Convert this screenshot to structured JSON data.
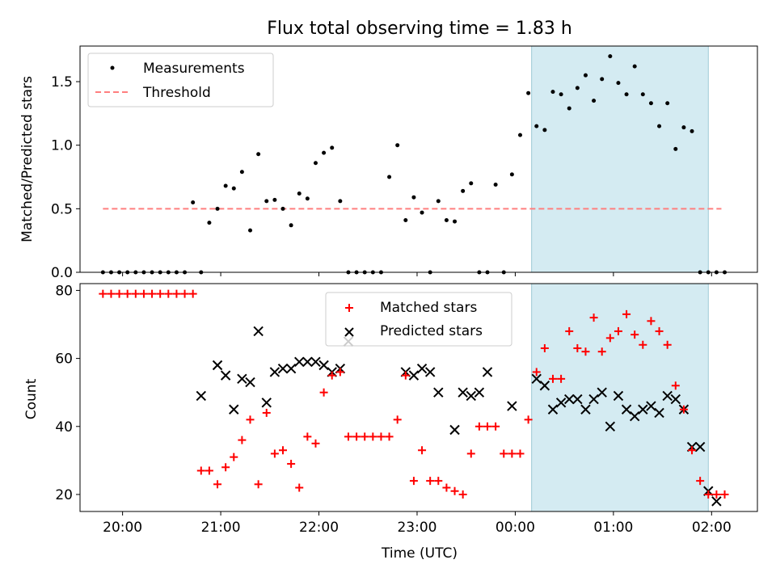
{
  "figure": {
    "title": "Flux total observing time = 1.83 h"
  },
  "chart_data": [
    {
      "type": "scatter",
      "ylabel": "Matched/Predicted stars",
      "ylim": [
        0,
        1.78
      ],
      "yticks": [
        0.0,
        0.5,
        1.0,
        1.5
      ],
      "ytick_labels": [
        "0.0",
        "0.5",
        "1.0",
        "1.5"
      ],
      "xlim": [
        "19:34",
        "02:28"
      ],
      "shaded_span": [
        "00:10",
        "01:58"
      ],
      "threshold": {
        "value": 0.5,
        "from": "19:48",
        "to": "02:06",
        "color": "#ff7f7f"
      },
      "legend": {
        "position": "top-left",
        "entries": [
          "Measurements",
          "Threshold"
        ]
      },
      "series": [
        {
          "name": "Measurements",
          "color": "#000000",
          "x": [
            "19:48",
            "19:53",
            "19:58",
            "20:03",
            "20:08",
            "20:13",
            "20:18",
            "20:23",
            "20:28",
            "20:33",
            "20:38",
            "20:43",
            "20:48",
            "20:53",
            "20:58",
            "21:03",
            "21:08",
            "21:13",
            "21:18",
            "21:23",
            "21:28",
            "21:33",
            "21:38",
            "21:43",
            "21:48",
            "21:53",
            "21:58",
            "22:03",
            "22:08",
            "22:13",
            "22:18",
            "22:23",
            "22:28",
            "22:33",
            "22:38",
            "22:43",
            "22:48",
            "22:53",
            "22:58",
            "23:03",
            "23:08",
            "23:13",
            "23:18",
            "23:23",
            "23:28",
            "23:33",
            "23:38",
            "23:43",
            "23:48",
            "23:53",
            "23:58",
            "00:03",
            "00:08",
            "00:13",
            "00:18",
            "00:23",
            "00:28",
            "00:33",
            "00:38",
            "00:43",
            "00:48",
            "00:53",
            "00:58",
            "01:03",
            "01:08",
            "01:13",
            "01:18",
            "01:23",
            "01:28",
            "01:33",
            "01:38",
            "01:43",
            "01:48",
            "01:53",
            "01:58",
            "02:03",
            "02:08"
          ],
          "y": [
            0,
            0,
            0,
            0,
            0,
            0,
            0,
            0,
            0,
            0,
            0,
            0.55,
            0,
            0.39,
            0.5,
            0.68,
            0.66,
            0.79,
            0.33,
            0.93,
            0.56,
            0.57,
            0.5,
            0.37,
            0.62,
            0.58,
            0.86,
            0.94,
            0.98,
            0.56,
            0,
            0,
            0,
            0,
            0,
            0.75,
            1.0,
            0.41,
            0.59,
            0.47,
            0,
            0.56,
            0.41,
            0.4,
            0.64,
            0.7,
            0,
            0,
            0.69,
            0,
            0.77,
            1.08,
            1.41,
            1.15,
            1.12,
            1.42,
            1.4,
            1.29,
            1.45,
            1.55,
            1.35,
            1.52,
            1.7,
            1.49,
            1.4,
            1.62,
            1.4,
            1.33,
            1.15,
            1.33,
            0.97,
            1.14,
            1.11,
            0,
            0,
            0,
            0
          ]
        }
      ]
    },
    {
      "type": "scatter",
      "xlabel": "Time (UTC)",
      "ylabel": "Count",
      "ylim": [
        15,
        82
      ],
      "yticks": [
        20,
        40,
        60,
        80
      ],
      "ytick_labels": [
        "20",
        "40",
        "60",
        "80"
      ],
      "xlim": [
        "19:34",
        "02:28"
      ],
      "xticks": [
        "20:00",
        "21:00",
        "22:00",
        "23:00",
        "00:00",
        "01:00",
        "02:00"
      ],
      "shaded_span": [
        "00:10",
        "01:58"
      ],
      "legend": {
        "position": "top-center",
        "entries": [
          "Matched stars",
          "Predicted stars"
        ]
      },
      "series": [
        {
          "name": "Matched stars",
          "marker": "plus",
          "color": "#ff0000",
          "x": [
            "19:48",
            "19:53",
            "19:58",
            "20:03",
            "20:08",
            "20:13",
            "20:18",
            "20:23",
            "20:28",
            "20:33",
            "20:38",
            "20:43",
            "20:48",
            "20:53",
            "20:58",
            "21:03",
            "21:08",
            "21:13",
            "21:18",
            "21:23",
            "21:28",
            "21:33",
            "21:38",
            "21:43",
            "21:48",
            "21:53",
            "21:58",
            "22:03",
            "22:08",
            "22:13",
            "22:18",
            "22:23",
            "22:28",
            "22:33",
            "22:38",
            "22:43",
            "22:48",
            "22:53",
            "22:58",
            "23:03",
            "23:08",
            "23:13",
            "23:18",
            "23:23",
            "23:28",
            "23:33",
            "23:38",
            "23:43",
            "23:48",
            "23:53",
            "23:58",
            "00:03",
            "00:08",
            "00:13",
            "00:18",
            "00:23",
            "00:28",
            "00:33",
            "00:38",
            "00:43",
            "00:48",
            "00:53",
            "00:58",
            "01:03",
            "01:08",
            "01:13",
            "01:18",
            "01:23",
            "01:28",
            "01:33",
            "01:38",
            "01:43",
            "01:48",
            "01:53",
            "01:58",
            "02:03",
            "02:08"
          ],
          "y": [
            79,
            79,
            79,
            79,
            79,
            79,
            79,
            79,
            79,
            79,
            79,
            79,
            27,
            27,
            23,
            28,
            31,
            36,
            42,
            23,
            44,
            32,
            33,
            29,
            22,
            37,
            35,
            50,
            55,
            56,
            37,
            37,
            37,
            37,
            37,
            37,
            42,
            55,
            24,
            33,
            24,
            24,
            22,
            21,
            20,
            32,
            40,
            40,
            40,
            32,
            32,
            32,
            42,
            56,
            63,
            54,
            54,
            68,
            63,
            62,
            72,
            62,
            66,
            68,
            73,
            67,
            64,
            71,
            68,
            64,
            52,
            45,
            33,
            24,
            20,
            20,
            20
          ]
        },
        {
          "name": "Predicted stars",
          "marker": "x",
          "color": "#000000",
          "x": [
            "20:48",
            "20:58",
            "21:03",
            "21:08",
            "21:13",
            "21:18",
            "21:23",
            "21:28",
            "21:33",
            "21:38",
            "21:43",
            "21:48",
            "21:53",
            "21:58",
            "22:03",
            "22:08",
            "22:13",
            "22:18",
            "22:53",
            "22:58",
            "23:03",
            "23:08",
            "23:13",
            "23:23",
            "23:28",
            "23:33",
            "23:38",
            "23:43",
            "23:58",
            "00:13",
            "00:18",
            "00:23",
            "00:28",
            "00:33",
            "00:38",
            "00:43",
            "00:48",
            "00:53",
            "00:58",
            "01:03",
            "01:08",
            "01:13",
            "01:18",
            "01:23",
            "01:28",
            "01:33",
            "01:38",
            "01:43",
            "01:48",
            "01:53",
            "01:58",
            "02:03"
          ],
          "y": [
            49,
            58,
            55,
            45,
            54,
            53,
            68,
            47,
            56,
            57,
            57,
            59,
            59,
            59,
            58,
            56,
            57,
            65,
            56,
            55,
            57,
            56,
            50,
            39,
            50,
            49,
            50,
            56,
            46,
            54,
            52,
            45,
            47,
            48,
            48,
            45,
            48,
            50,
            40,
            49,
            45,
            43,
            45,
            46,
            44,
            49,
            48,
            45,
            34,
            34,
            21,
            18
          ]
        }
      ]
    }
  ]
}
